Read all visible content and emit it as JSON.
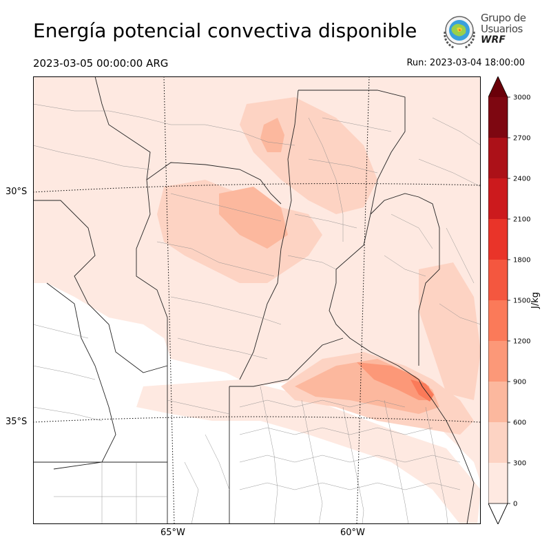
{
  "title": "Energía potencial convectiva disponible",
  "valid_time": "2023-03-05 00:00:00 ARG",
  "run_time": "Run: 2023-03-04 18:00:00",
  "logo": {
    "line1": "Grupo de",
    "line2": "Usuarios",
    "line3": "WRF"
  },
  "axes": {
    "lat_labels": [
      "30°S",
      "35°S"
    ],
    "lon_labels": [
      "65°W",
      "60°W"
    ]
  },
  "colorbar": {
    "unit": "J/kg",
    "levels": [
      0,
      300,
      600,
      900,
      1200,
      1500,
      1800,
      2100,
      2400,
      2700,
      3000
    ],
    "colors": [
      "#fee9e1",
      "#fdd3c3",
      "#fcb89e",
      "#fc9878",
      "#fb7a59",
      "#f4573f",
      "#e93429",
      "#cc1a1d",
      "#ac1118",
      "#7e0711"
    ],
    "extend_color": "#6a0009"
  },
  "colors": {
    "cape_light": "#fee9e1",
    "cape_mid": "#fdd3c3",
    "cape_high": "#fcb89e",
    "cape_peak": "#fc9878"
  }
}
